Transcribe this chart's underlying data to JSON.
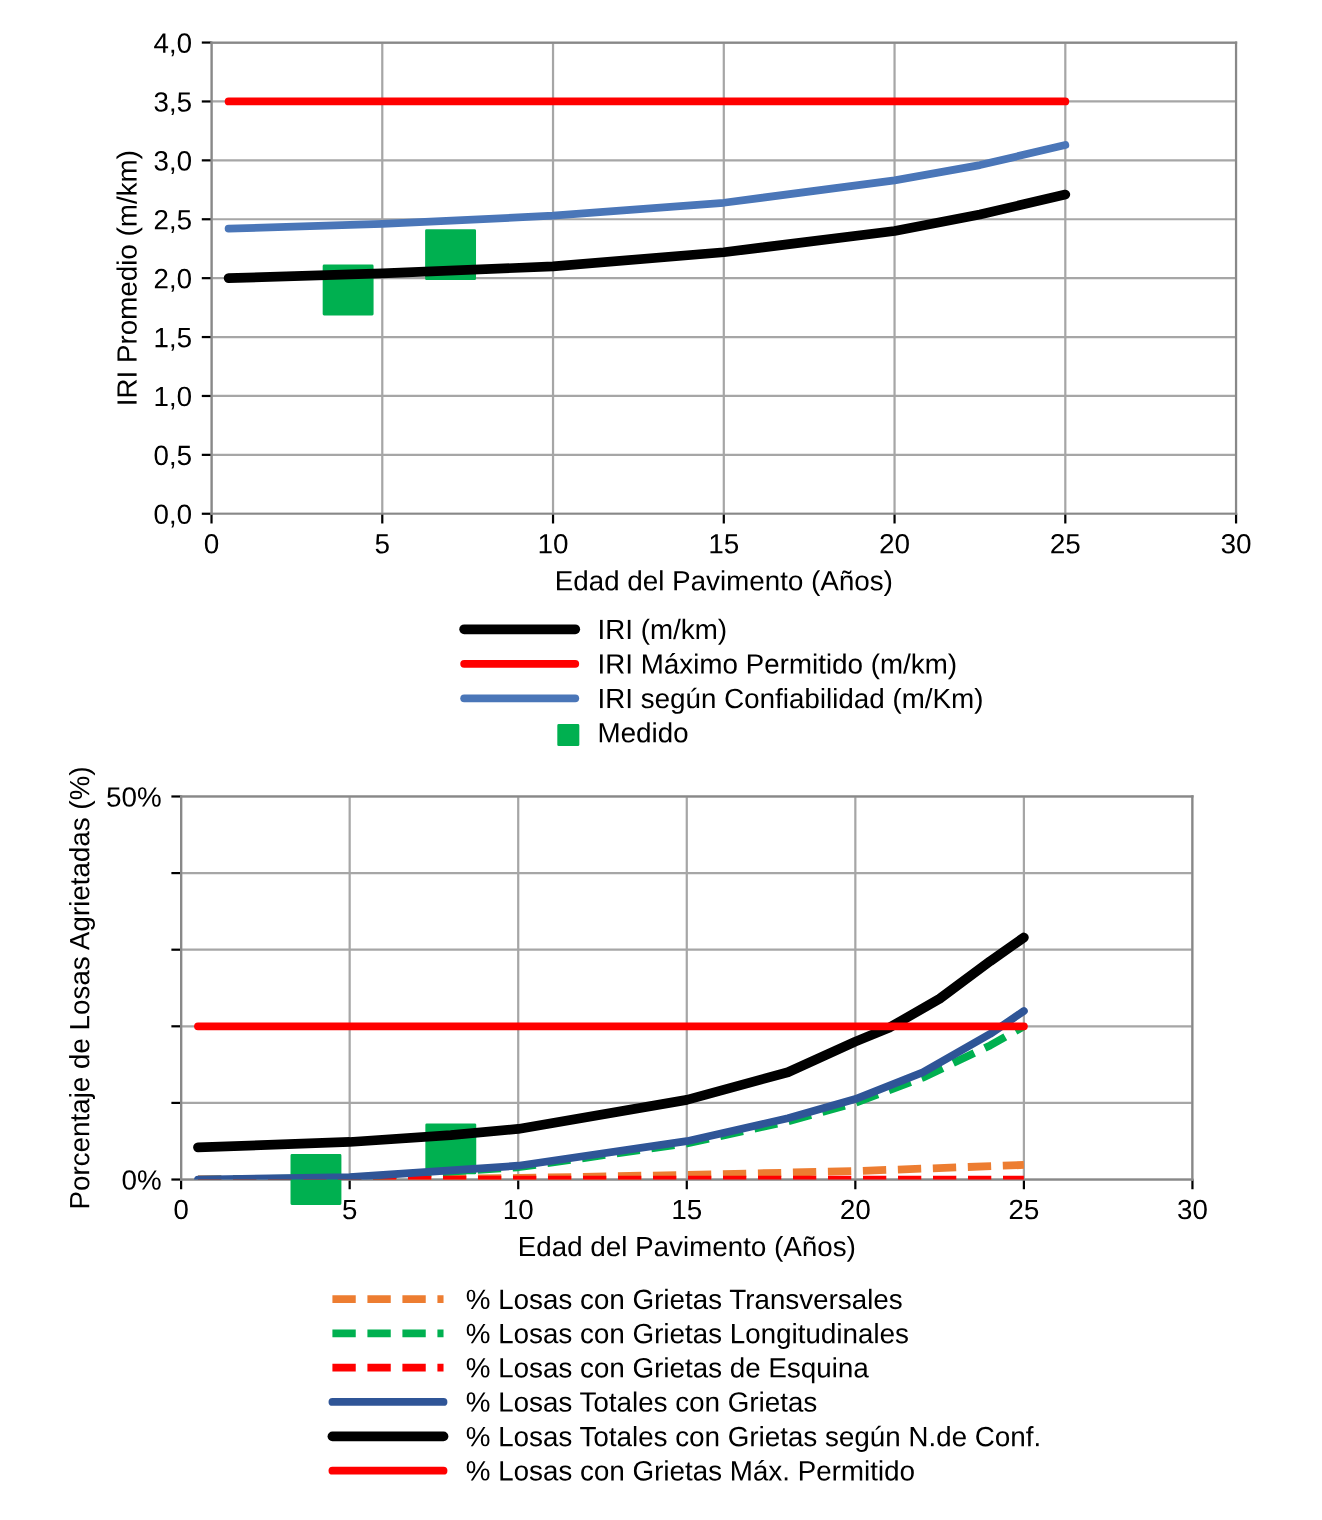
{
  "chart_data": [
    {
      "type": "line",
      "xlabel": "Edad del Pavimento (Años)",
      "ylabel": "IRI Promedio (m/km)",
      "xlim": [
        0,
        30
      ],
      "xticks": [
        0,
        5,
        10,
        15,
        20,
        25,
        30
      ],
      "ylim": [
        0,
        4
      ],
      "yticks": [
        {
          "value": 0,
          "label": "0,0"
        },
        {
          "value": 0.5,
          "label": "0,5"
        },
        {
          "value": 1,
          "label": "1,0"
        },
        {
          "value": 1.5,
          "label": "1,5"
        },
        {
          "value": 2,
          "label": "2,0"
        },
        {
          "value": 2.5,
          "label": "2,5"
        },
        {
          "value": 3,
          "label": "3,0"
        },
        {
          "value": 3.5,
          "label": "3,5"
        },
        {
          "value": 4,
          "label": "4,0"
        }
      ],
      "grid": true,
      "legend": "bottom",
      "line_style": "solid",
      "series": [
        {
          "name": "IRI (m/km)",
          "color": "#000000",
          "x": [
            0.5,
            5,
            10,
            15,
            20,
            22.5,
            25
          ],
          "values": [
            2.0,
            2.04,
            2.1,
            2.22,
            2.4,
            2.54,
            2.71
          ]
        },
        {
          "name": "IRI Máximo Permitido (m/km)",
          "color": "#ff0000",
          "x": [
            0.5,
            25
          ],
          "values": [
            3.5,
            3.5
          ]
        },
        {
          "name": "IRI según Confiabilidad (m/Km)",
          "color": "#4a76b8",
          "x": [
            0.5,
            5,
            10,
            15,
            20,
            22.5,
            25
          ],
          "values": [
            2.42,
            2.46,
            2.53,
            2.64,
            2.83,
            2.96,
            3.13
          ]
        },
        {
          "name": "Medido",
          "color": "#00b050",
          "type": "scatter",
          "marker": "square",
          "x": [
            4,
            7
          ],
          "values": [
            1.9,
            2.2
          ]
        }
      ]
    },
    {
      "type": "line",
      "xlabel": "Edad del Pavimento (Años)",
      "ylabel": "Porcentaje de Losas Agrietadas (%)",
      "xlim": [
        0,
        30
      ],
      "xticks": [
        0,
        5,
        10,
        15,
        20,
        25,
        30
      ],
      "ylim": [
        0,
        50
      ],
      "yticks": [
        {
          "value": 0,
          "label": "0%"
        },
        {
          "value": 10,
          "label": null
        },
        {
          "value": 20,
          "label": null
        },
        {
          "value": 30,
          "label": null
        },
        {
          "value": 40,
          "label": null
        },
        {
          "value": 50,
          "label": "50%"
        }
      ],
      "grid": true,
      "legend": "bottom",
      "line_style": "solid",
      "series": [
        {
          "name": "% Losas con Grietas Transversales",
          "color": "#ed7d31",
          "line_style": "dashed",
          "x": [
            0.5,
            5,
            10,
            15,
            20,
            25
          ],
          "values": [
            0,
            0,
            0.2,
            0.6,
            1.1,
            1.9
          ]
        },
        {
          "name": "% Losas con Grietas Longitudinales",
          "color": "#00b050",
          "line_style": "dashed",
          "x": [
            0.5,
            5,
            10,
            15,
            18,
            20,
            22,
            24,
            25
          ],
          "values": [
            0,
            0.2,
            1.6,
            4.7,
            7.6,
            10,
            13.3,
            17.5,
            20
          ]
        },
        {
          "name": "% Losas con Grietas de Esquina",
          "color": "#ff0000",
          "line_style": "dashed",
          "x": [
            0.5,
            25
          ],
          "values": [
            0,
            0
          ]
        },
        {
          "name": "% Losas Totales con Grietas",
          "color": "#2f5597",
          "x": [
            0.5,
            5,
            10,
            15,
            18,
            20,
            22,
            24,
            25
          ],
          "values": [
            0,
            0.3,
            1.8,
            5,
            8,
            10.5,
            14,
            19,
            22
          ]
        },
        {
          "name": "% Losas Totales con Grietas según N.de Conf.",
          "color": "#000000",
          "x": [
            0.5,
            5,
            8,
            10,
            15,
            18,
            20,
            21,
            22.5,
            24,
            25
          ],
          "values": [
            4.2,
            4.9,
            5.8,
            6.6,
            10.4,
            14,
            18,
            19.8,
            23.6,
            28.5,
            31.6
          ]
        },
        {
          "name": "% Losas con Grietas Máx. Permitido",
          "color": "#ff0000",
          "x": [
            0.5,
            25
          ],
          "values": [
            20,
            20
          ]
        },
        {
          "color": "#00b050",
          "type": "scatter",
          "marker": "square",
          "x": [
            4,
            8
          ],
          "values": [
            0,
            4
          ]
        }
      ]
    }
  ]
}
